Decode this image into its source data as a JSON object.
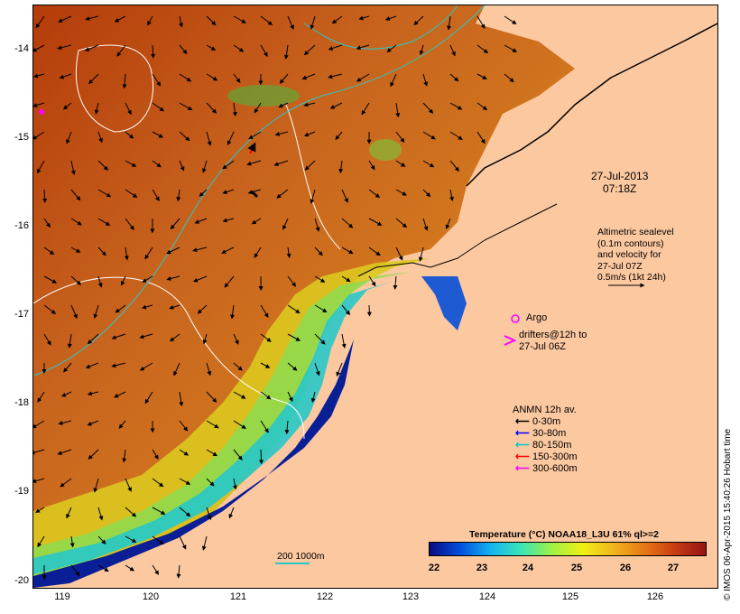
{
  "map": {
    "date_label": "27-Jul-2013",
    "time_label": "07:18Z",
    "altimetry_lines": [
      "Altimetric sealevel",
      "(0.1m contours)",
      "and velocity for",
      "27-Jul 07Z",
      "0.5m/s (1kt 24h)"
    ],
    "argo_label": "Argo",
    "drifter_lines": [
      "drifters@12h to",
      "27-Jul 06Z"
    ],
    "anmn": {
      "title": "ANMN 12h av.",
      "rows": [
        {
          "label": "0-30m",
          "color": "#000000"
        },
        {
          "label": "30-80m",
          "color": "#0000ff"
        },
        {
          "label": "80-150m",
          "color": "#00c8c8"
        },
        {
          "label": "150-300m",
          "color": "#ff0000"
        },
        {
          "label": "300-600m",
          "color": "#ff00ff"
        }
      ]
    },
    "scale_bar_label": "200  1000m",
    "y_ticks": [
      "-14",
      "-15",
      "-16",
      "-17",
      "-18",
      "-19",
      "-20"
    ],
    "x_ticks": [
      "119",
      "120",
      "121",
      "122",
      "123",
      "124",
      "125",
      "126"
    ],
    "colorbar": {
      "title": "Temperature (°C) NOAA18_L3U 61% ql>=2",
      "ticks": [
        "22",
        "23",
        "24",
        "25",
        "26",
        "27"
      ],
      "colors": [
        "#0a0a82",
        "#0050dc",
        "#14b4f0",
        "#3ce6b4",
        "#a0f046",
        "#f0f014",
        "#f0b41e",
        "#e67814",
        "#c83c14",
        "#961414"
      ]
    },
    "credit": "© IMOS 06-Apr-2015 15:40:26 Hobart time"
  }
}
